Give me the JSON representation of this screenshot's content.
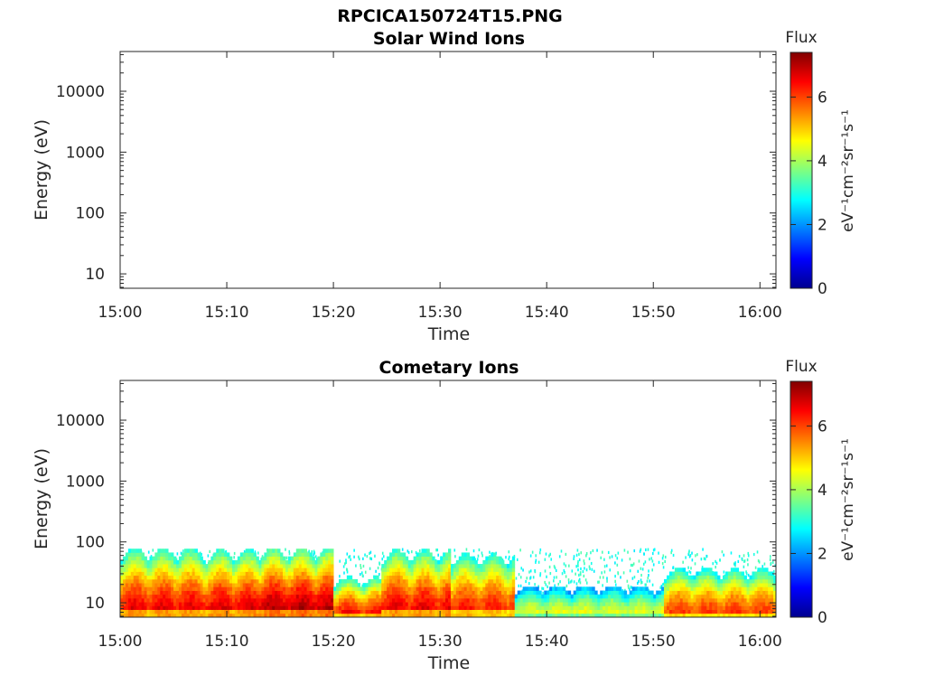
{
  "figure": {
    "title": "RPCICA150724T15.PNG"
  },
  "chart_data": [
    {
      "type": "heatmap",
      "title": "Solar Wind Ions",
      "xlabel": "Time",
      "ylabel": "Energy (eV)",
      "x_ticks": [
        "15:00",
        "15:10",
        "15:20",
        "15:30",
        "15:40",
        "15:50",
        "16:00"
      ],
      "x_range_minutes": [
        0,
        61.5
      ],
      "y_scale": "log",
      "y_ticks": [
        "10",
        "100",
        "1000",
        "10000"
      ],
      "y_tick_values": [
        10,
        100,
        1000,
        10000
      ],
      "ylim": [
        5.8,
        45000
      ],
      "colorbar": {
        "title": "Flux",
        "label": "eV⁻¹cm⁻²sr⁻¹s⁻¹",
        "ticks": [
          "0",
          "2",
          "4",
          "6"
        ],
        "tick_values": [
          0,
          2,
          4,
          6
        ],
        "range": [
          0,
          7.4
        ]
      },
      "data_regions": []
    },
    {
      "type": "heatmap",
      "title": "Cometary Ions",
      "xlabel": "Time",
      "ylabel": "Energy (eV)",
      "x_ticks": [
        "15:00",
        "15:10",
        "15:20",
        "15:30",
        "15:40",
        "15:50",
        "16:00"
      ],
      "x_range_minutes": [
        0,
        61.5
      ],
      "y_scale": "log",
      "y_ticks": [
        "10",
        "100",
        "1000",
        "10000"
      ],
      "y_tick_values": [
        10,
        100,
        1000,
        10000
      ],
      "ylim": [
        5.8,
        45000
      ],
      "colorbar": {
        "title": "Flux",
        "label": "eV⁻¹cm⁻²sr⁻¹s⁻¹",
        "ticks": [
          "0",
          "2",
          "4",
          "6"
        ],
        "tick_values": [
          0,
          2,
          4,
          6
        ],
        "range": [
          0,
          7.4
        ]
      },
      "background_speckle": {
        "energy_max": 80,
        "flux": 3
      },
      "data_regions": [
        {
          "t_start": 0,
          "t_end": 8,
          "energy_max": 75,
          "peak_flux": 6.8,
          "note": "intense"
        },
        {
          "t_start": 8,
          "t_end": 13,
          "energy_max": 70,
          "peak_flux": 6.9
        },
        {
          "t_start": 13,
          "t_end": 20,
          "energy_max": 75,
          "peak_flux": 7.2
        },
        {
          "t_start": 20,
          "t_end": 24.5,
          "energy_max": 25,
          "peak_flux": 6.5
        },
        {
          "t_start": 24.5,
          "t_end": 31,
          "energy_max": 70,
          "peak_flux": 6.8
        },
        {
          "t_start": 31,
          "t_end": 37,
          "energy_max": 60,
          "peak_flux": 6.5
        },
        {
          "t_start": 37,
          "t_end": 51,
          "energy_max": 18,
          "peak_flux": 4.6
        },
        {
          "t_start": 51,
          "t_end": 61.5,
          "energy_max": 35,
          "peak_flux": 6.2
        }
      ]
    }
  ]
}
